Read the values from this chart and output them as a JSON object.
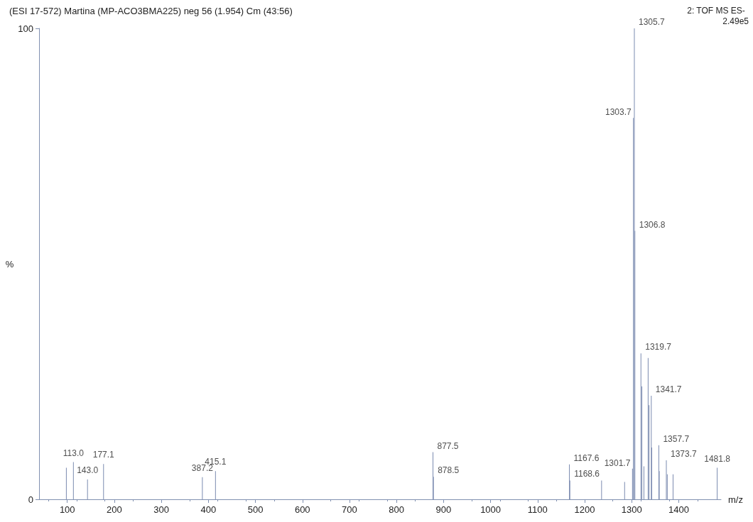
{
  "chart_data": {
    "type": "bar",
    "title": "(ESI 17-572) Martina (MP-ACO3BMA225) neg 56 (1.954) Cm (43:56)",
    "subtitle": "2: TOF MS ES-",
    "xlabel": "m/z",
    "ylabel": "%",
    "x": [
      98,
      113.0,
      143.0,
      177.1,
      387.2,
      415.1,
      877.5,
      878.5,
      1167.6,
      1168.6,
      1236,
      1285,
      1301.7,
      1303.7,
      1305.7,
      1306.8,
      1319.7,
      1321.7,
      1326,
      1335,
      1337,
      1341.7,
      1342.7,
      1357.7,
      1358.7,
      1373.7,
      1375.7,
      1388,
      1481.8
    ],
    "values": [
      6.7,
      7.9,
      4.2,
      7.5,
      4.7,
      6.0,
      10,
      4.8,
      7.4,
      4.0,
      4.0,
      3.7,
      6.5,
      81,
      100,
      57,
      31,
      24,
      7,
      30,
      20,
      22,
      11,
      11.5,
      6,
      8.3,
      5.3,
      5.3,
      6.7
    ],
    "color": "#7b8bb0",
    "xlim": [
      40,
      1490
    ],
    "xticks": [
      100,
      200,
      300,
      400,
      500,
      600,
      700,
      800,
      900,
      1000,
      1100,
      1200,
      1300,
      1400
    ],
    "ylim": [
      0,
      100
    ],
    "yticks": [
      0,
      100
    ],
    "grid": false,
    "annotations": [
      "2.49e5",
      {
        "text": "113.0",
        "x": 113.0,
        "y": 7.9
      },
      {
        "text": "143.0",
        "x": 143.0,
        "y": 4.2
      },
      {
        "text": "177.1",
        "x": 177.1,
        "y": 7.5
      },
      {
        "text": "387.2",
        "x": 387.2,
        "y": 4.7
      },
      {
        "text": "415.1",
        "x": 415.1,
        "y": 6.0
      },
      {
        "text": "877.5",
        "x": 877.5,
        "y": 10
      },
      {
        "text": "878.5",
        "x": 878.5,
        "y": 4.8
      },
      {
        "text": "1167.6",
        "x": 1167.6,
        "y": 7.4
      },
      {
        "text": "1168.6",
        "x": 1168.6,
        "y": 4.0
      },
      {
        "text": "1301.7",
        "x": 1301.7,
        "y": 6.5
      },
      {
        "text": "1303.7",
        "x": 1303.7,
        "y": 81
      },
      {
        "text": "1305.7",
        "x": 1305.7,
        "y": 100
      },
      {
        "text": "1306.8",
        "x": 1306.8,
        "y": 57
      },
      {
        "text": "1319.7",
        "x": 1319.7,
        "y": 31
      },
      {
        "text": "1341.7",
        "x": 1341.7,
        "y": 22
      },
      {
        "text": "1357.7",
        "x": 1357.7,
        "y": 11.5
      },
      {
        "text": "1373.7",
        "x": 1373.7,
        "y": 8.3
      },
      {
        "text": "1481.8",
        "x": 1481.8,
        "y": 6.7
      }
    ]
  }
}
